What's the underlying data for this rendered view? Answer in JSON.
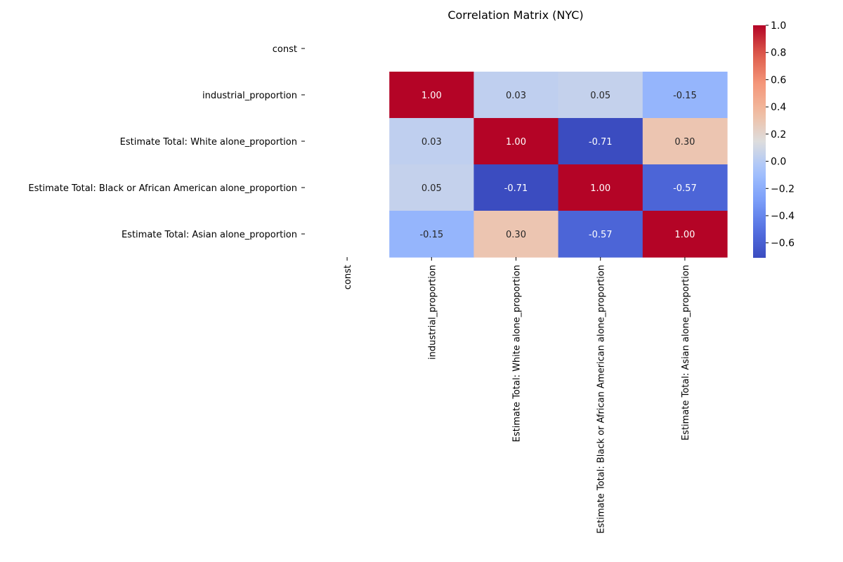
{
  "chart_data": {
    "type": "heatmap",
    "title": "Correlation Matrix (NYC)",
    "row_labels": [
      "const",
      "industrial_proportion",
      "Estimate Total: White alone_proportion",
      "Estimate Total: Black or African American alone_proportion",
      "Estimate Total: Asian alone_proportion"
    ],
    "col_labels": [
      "const",
      "industrial_proportion",
      "Estimate Total: White alone_proportion",
      "Estimate Total: Black or African American alone_proportion",
      "Estimate Total: Asian alone_proportion"
    ],
    "values": [
      [
        null,
        null,
        null,
        null,
        null
      ],
      [
        null,
        1.0,
        0.03,
        0.05,
        -0.15
      ],
      [
        null,
        0.03,
        1.0,
        -0.71,
        0.3
      ],
      [
        null,
        0.05,
        -0.71,
        1.0,
        -0.57
      ],
      [
        null,
        -0.15,
        0.3,
        -0.57,
        1.0
      ]
    ],
    "value_format": "2 decimals",
    "colormap": "coolwarm",
    "colorbar": {
      "range": [
        -0.71,
        1.0
      ],
      "ticks": [
        1.0,
        0.8,
        0.6,
        0.4,
        0.2,
        0.0,
        -0.2,
        -0.4,
        -0.6
      ],
      "tick_labels": [
        "1.0",
        "0.8",
        "0.6",
        "0.4",
        "0.2",
        "0.0",
        "−0.2",
        "−0.4",
        "−0.6"
      ]
    },
    "grid": false,
    "legend": "colorbar-right"
  }
}
